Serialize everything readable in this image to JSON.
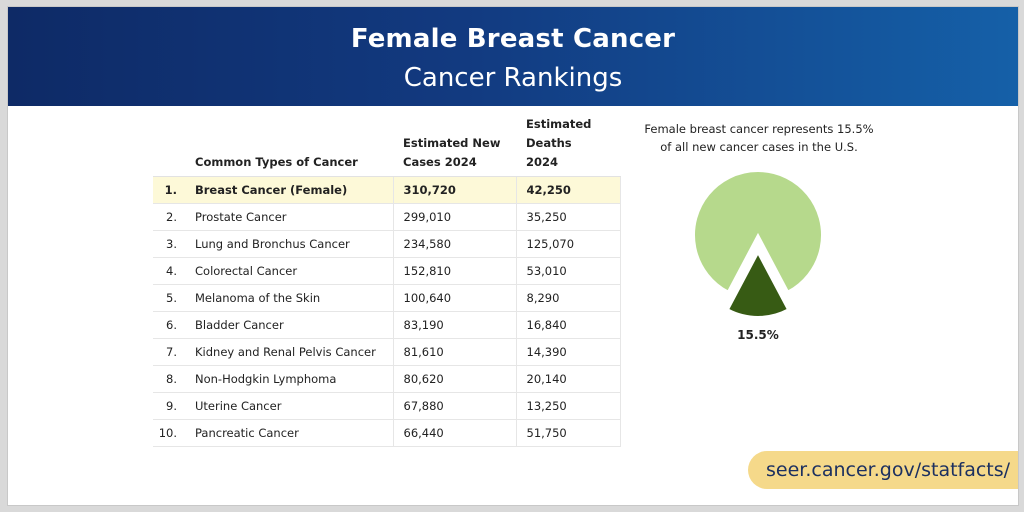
{
  "header": {
    "title": "Female Breast Cancer",
    "subtitle": "Cancer Rankings"
  },
  "table": {
    "columns": [
      "Common Types of Cancer",
      "Estimated New Cases 2024",
      "Estimated Deaths 2024"
    ],
    "rows": [
      {
        "rank": "1.",
        "name": "Breast Cancer (Female)",
        "cases": "310,720",
        "deaths": "42,250"
      },
      {
        "rank": "2.",
        "name": "Prostate Cancer",
        "cases": "299,010",
        "deaths": "35,250"
      },
      {
        "rank": "3.",
        "name": "Lung and Bronchus Cancer",
        "cases": "234,580",
        "deaths": "125,070"
      },
      {
        "rank": "4.",
        "name": "Colorectal Cancer",
        "cases": "152,810",
        "deaths": "53,010"
      },
      {
        "rank": "5.",
        "name": "Melanoma of the Skin",
        "cases": "100,640",
        "deaths": "8,290"
      },
      {
        "rank": "6.",
        "name": "Bladder Cancer",
        "cases": "83,190",
        "deaths": "16,840"
      },
      {
        "rank": "7.",
        "name": "Kidney and Renal Pelvis Cancer",
        "cases": "81,610",
        "deaths": "14,390"
      },
      {
        "rank": "8.",
        "name": "Non-Hodgkin Lymphoma",
        "cases": "80,620",
        "deaths": "20,140"
      },
      {
        "rank": "9.",
        "name": "Uterine Cancer",
        "cases": "67,880",
        "deaths": "13,250"
      },
      {
        "rank": "10.",
        "name": "Pancreatic Cancer",
        "cases": "66,440",
        "deaths": "51,750"
      }
    ]
  },
  "pie": {
    "caption_line1": "Female breast cancer represents 15.5%",
    "caption_line2": "of all new cancer cases in the U.S.",
    "label": "15.5%"
  },
  "footer": {
    "url": "seer.cancer.gov/statfacts/"
  },
  "colors": {
    "header_start": "#0e2a66",
    "header_end": "#1560a8",
    "highlight_row": "#fdf9d8",
    "pie_other": "#b6d98c",
    "pie_highlight": "#375b14",
    "pill": "#f5d98a"
  },
  "chart_data": [
    {
      "type": "table",
      "columns": [
        "Common Types of Cancer",
        "Estimated New Cases 2024",
        "Estimated Deaths 2024"
      ],
      "rows": [
        [
          "Breast Cancer (Female)",
          310720,
          42250
        ],
        [
          "Prostate Cancer",
          299010,
          35250
        ],
        [
          "Lung and Bronchus Cancer",
          234580,
          125070
        ],
        [
          "Colorectal Cancer",
          152810,
          53010
        ],
        [
          "Melanoma of the Skin",
          100640,
          8290
        ],
        [
          "Bladder Cancer",
          83190,
          16840
        ],
        [
          "Kidney and Renal Pelvis Cancer",
          81610,
          14390
        ],
        [
          "Non-Hodgkin Lymphoma",
          80620,
          20140
        ],
        [
          "Uterine Cancer",
          67880,
          13250
        ],
        [
          "Pancreatic Cancer",
          66440,
          51750
        ]
      ]
    },
    {
      "type": "pie",
      "values": [
        15.5,
        84.5
      ],
      "data_labels": [
        "15.5%",
        ""
      ],
      "colors": [
        "#375b14",
        "#b6d98c"
      ],
      "exploded": [
        true,
        false
      ],
      "start_angle_deg": 180
    }
  ]
}
